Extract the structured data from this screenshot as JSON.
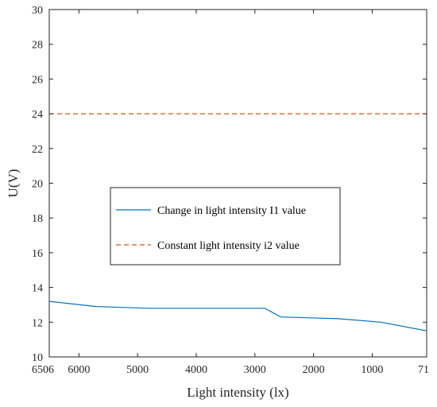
{
  "chart_data": {
    "type": "line",
    "xlabel": "Light intensity (lx)",
    "ylabel": "U(V)",
    "xlim": [
      6506,
      71
    ],
    "ylim": [
      10,
      30
    ],
    "x_reversed": true,
    "xticks": [
      6506,
      6000,
      5000,
      4000,
      3000,
      2000,
      1000,
      71
    ],
    "xtick_labels": [
      "6506",
      "6000",
      "5000",
      "4000",
      "3000",
      "2000",
      "1000",
      "71"
    ],
    "yticks": [
      10,
      12,
      14,
      16,
      18,
      20,
      22,
      24,
      26,
      28,
      30
    ],
    "grid": false,
    "legend_position": "center-left",
    "series": [
      {
        "name": "Change in light intensity I1 value",
        "style": "solid",
        "color": "#0072BD",
        "x": [
          6506,
          5710,
          4800,
          2830,
          2560,
          1580,
          850,
          71
        ],
        "y": [
          13.2,
          12.9,
          12.8,
          12.8,
          12.3,
          12.2,
          12.0,
          11.5
        ]
      },
      {
        "name": "Constant light intensity i2 value",
        "style": "dashed",
        "color": "#D95319",
        "x": [
          6506,
          71
        ],
        "y": [
          24,
          24
        ]
      }
    ]
  }
}
